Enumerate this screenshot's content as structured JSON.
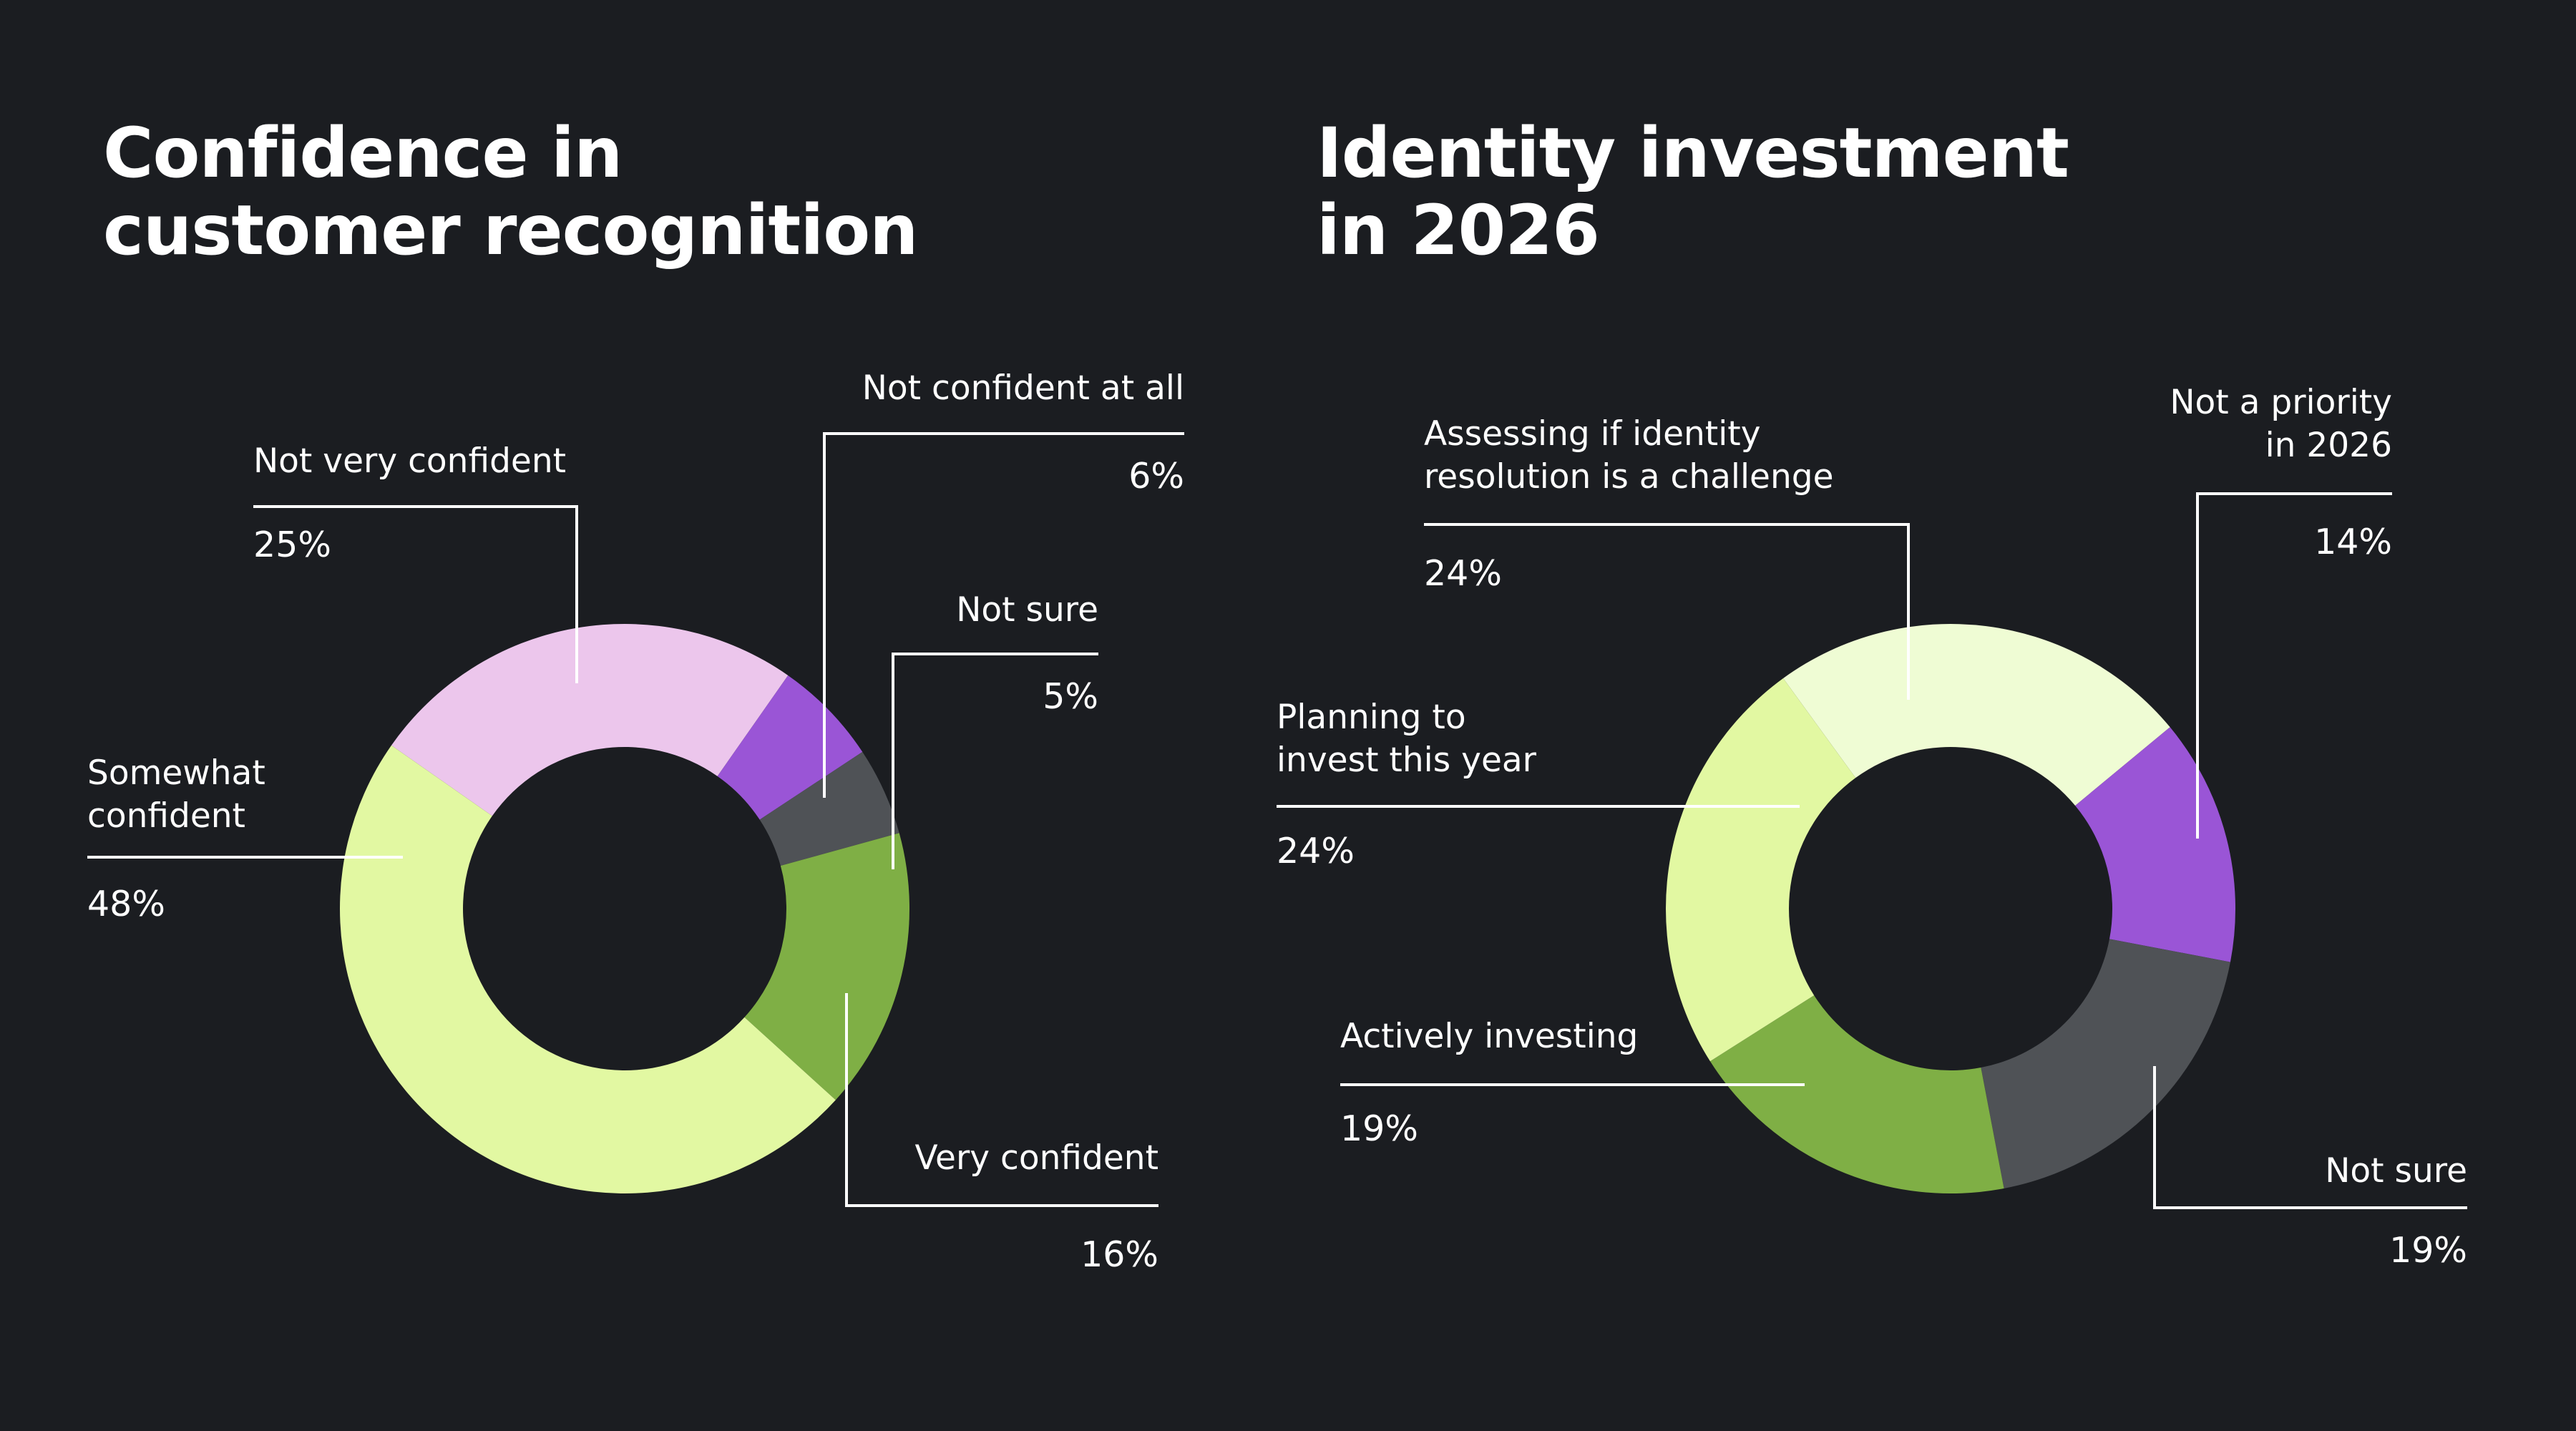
{
  "chart_data": [
    {
      "type": "pie",
      "title": "Confidence in customer recognition",
      "title_lines": [
        "Confidence in",
        "customer recognition"
      ],
      "categories": [
        "Not very confident",
        "Not confident at all",
        "Not sure",
        "Very confident",
        "Somewhat confident"
      ],
      "values": [
        25,
        6,
        5,
        16,
        48
      ],
      "value_labels": [
        "25%",
        "6%",
        "5%",
        "16%",
        "48%"
      ],
      "colors": [
        "#ecc6ec",
        "#9a55d6",
        "#4f5256",
        "#7faf45",
        "#e2f8a2"
      ]
    },
    {
      "type": "pie",
      "title": "Identity investment in 2026",
      "title_lines": [
        "Identity investment",
        "in 2026"
      ],
      "categories": [
        "Assessing if identity resolution is a challenge",
        "Not a priority in 2026",
        "Not sure",
        "Actively investing",
        "Planning to invest this year"
      ],
      "label_lines": [
        [
          "Assessing if identity",
          "resolution is a challenge"
        ],
        [
          "Not a priority",
          "in 2026"
        ],
        [
          "Not sure"
        ],
        [
          "Actively investing"
        ],
        [
          "Planning to",
          "invest this year"
        ]
      ],
      "values": [
        24,
        14,
        19,
        19,
        24
      ],
      "value_labels": [
        "24%",
        "14%",
        "19%",
        "19%",
        "24%"
      ],
      "colors": [
        "#effcd4",
        "#9a55d6",
        "#4f5256",
        "#7faf45",
        "#e2f8a2"
      ]
    }
  ],
  "label_lines_chart1": [
    [
      "Not very confident"
    ],
    [
      "Not confident at all"
    ],
    [
      "Not sure"
    ],
    [
      "Very confident"
    ],
    [
      "Somewhat",
      "confident"
    ]
  ]
}
